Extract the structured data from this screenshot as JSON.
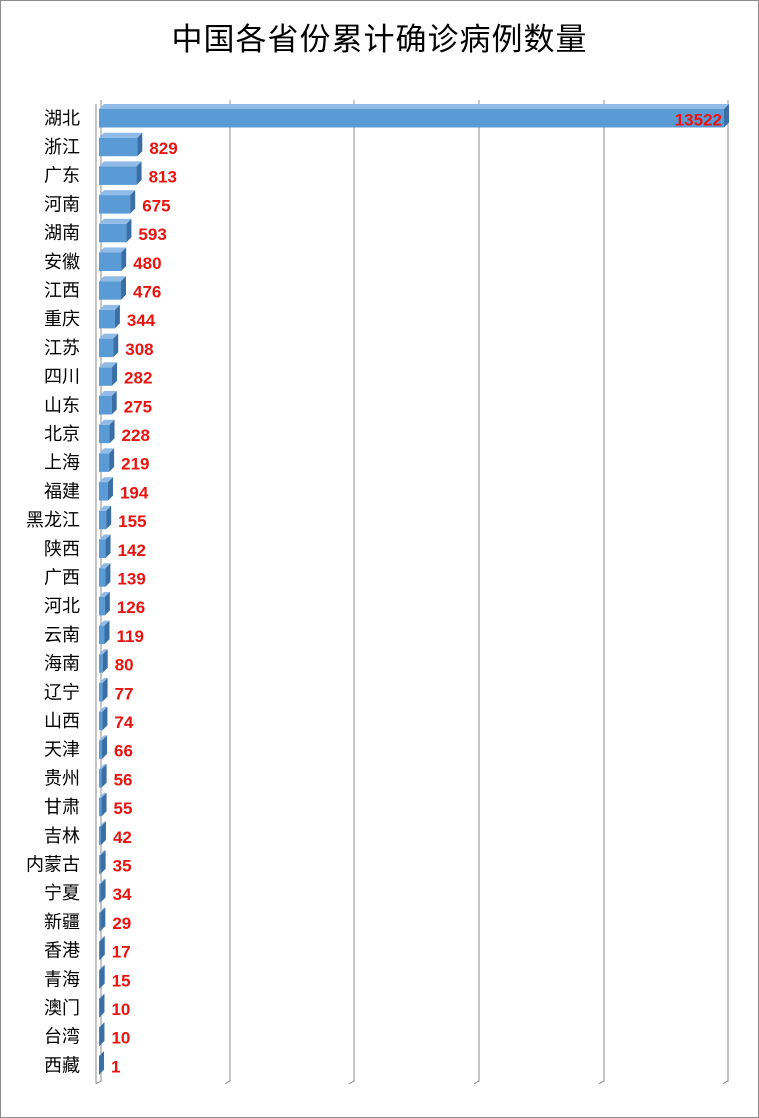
{
  "chart_data": {
    "type": "bar",
    "orientation": "horizontal",
    "title": "中国各省份累计确诊病例数量",
    "categories": [
      "湖北",
      "浙江",
      "广东",
      "河南",
      "湖南",
      "安徽",
      "江西",
      "重庆",
      "江苏",
      "四川",
      "山东",
      "北京",
      "上海",
      "福建",
      "黑龙江",
      "陕西",
      "广西",
      "河北",
      "云南",
      "海南",
      "辽宁",
      "山西",
      "天津",
      "贵州",
      "甘肃",
      "吉林",
      "内蒙古",
      "宁夏",
      "新疆",
      "香港",
      "青海",
      "澳门",
      "台湾",
      "西藏"
    ],
    "values": [
      13522,
      829,
      813,
      675,
      593,
      480,
      476,
      344,
      308,
      282,
      275,
      228,
      219,
      194,
      155,
      142,
      139,
      126,
      119,
      80,
      77,
      74,
      66,
      56,
      55,
      42,
      35,
      34,
      29,
      17,
      15,
      10,
      10,
      1
    ],
    "grid": true,
    "legend": "none",
    "bar_color": "#5b9bd5",
    "label_color": "#e8140f",
    "gridline_color": "#8c8c8c"
  }
}
